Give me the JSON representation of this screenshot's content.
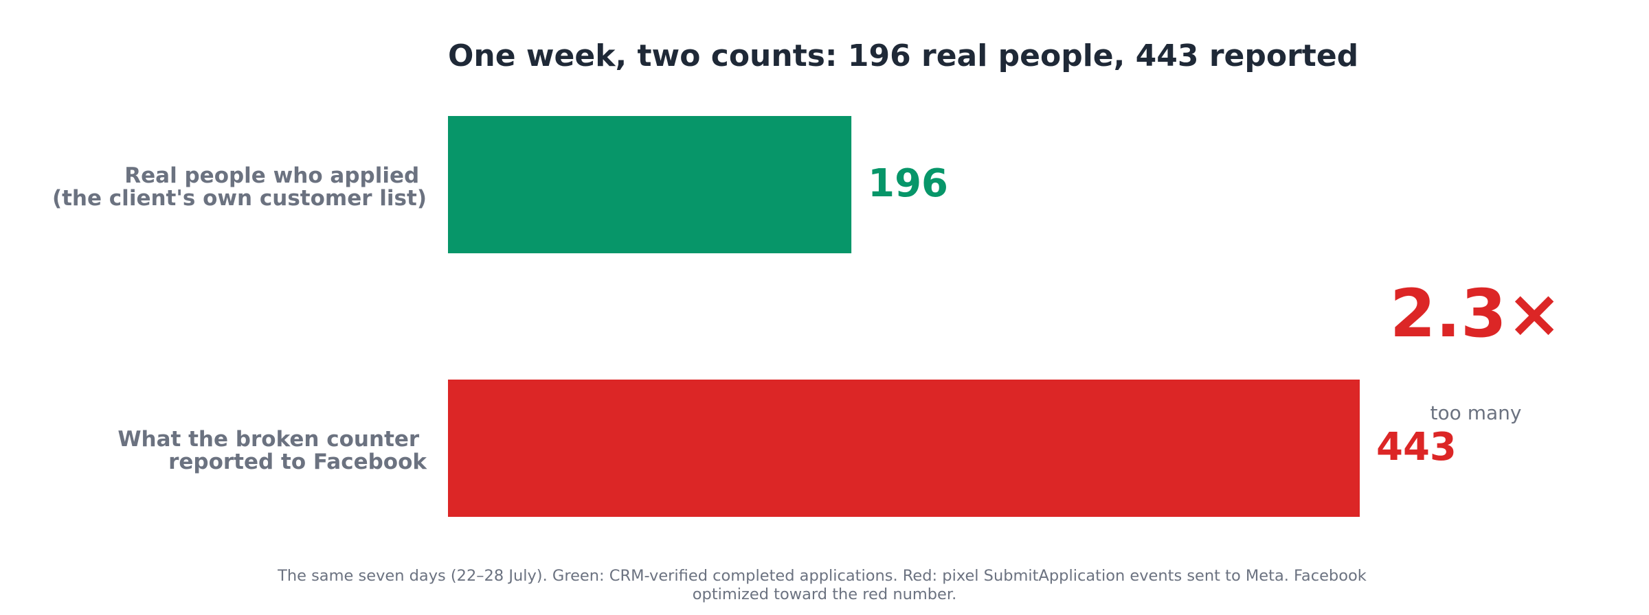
{
  "chart_data": {
    "type": "bar",
    "orientation": "horizontal",
    "title": "One week, two counts: 196 real people, 443 reported",
    "categories": [
      [
        "Real people who applied",
        "(the client's own customer list)"
      ],
      [
        "What the broken counter",
        "reported to Facebook"
      ]
    ],
    "values": [
      196,
      443
    ],
    "colors": [
      "#079669",
      "#dc2626"
    ],
    "xlim": [
      0,
      443
    ],
    "grid": false,
    "annotation": {
      "ratio_text": "2.3×",
      "ratio_sub": "too many",
      "color": "#dc2626"
    },
    "caption": [
      "The same seven days (22–28 July). Green: CRM-verified completed applications. Red: pixel SubmitApplication events sent to Meta. Facebook",
      "optimized toward the red number."
    ]
  }
}
